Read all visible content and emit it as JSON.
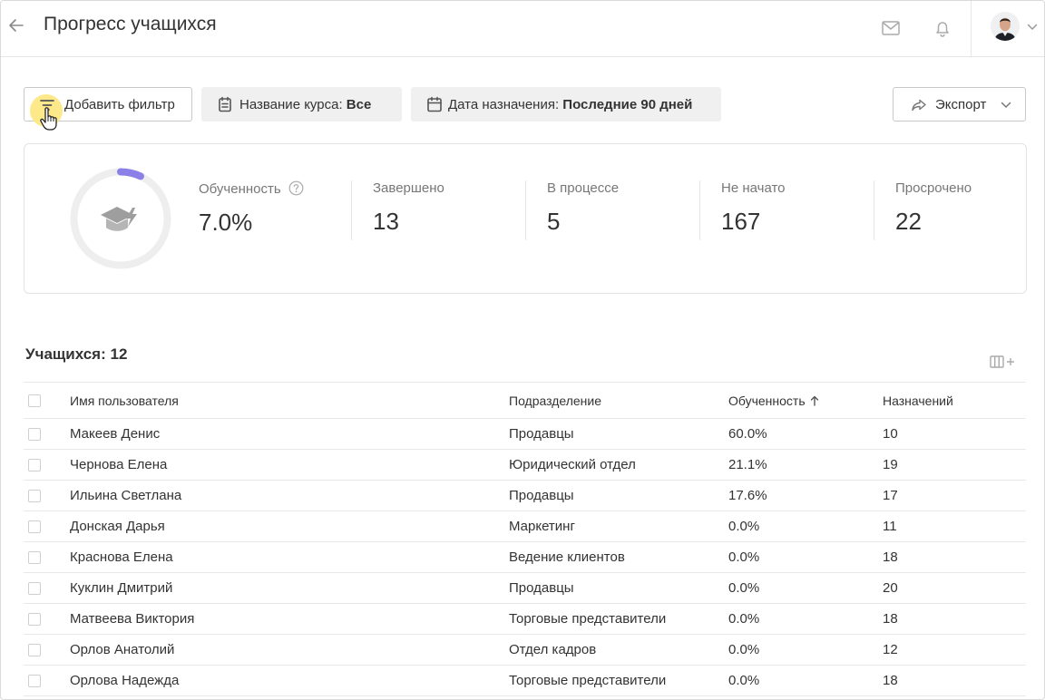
{
  "header": {
    "title": "Прогресс учащихся",
    "icons": {
      "back": "arrow-left-icon",
      "mail": "mail-icon",
      "bell": "bell-icon",
      "avatar_menu": "chevron-down-icon"
    }
  },
  "toolbar": {
    "add_filter_label": "Добавить фильтр",
    "course_filter_label": "Название курса:",
    "course_filter_value": "Все",
    "date_filter_label": "Дата назначения:",
    "date_filter_value": "Последние 90 дней",
    "export_label": "Экспорт"
  },
  "stats": {
    "progress_label": "Обученность",
    "progress_value": "7.0%",
    "progress_fraction": 0.07,
    "completed_label": "Завершено",
    "completed_value": "13",
    "in_progress_label": "В процессе",
    "in_progress_value": "5",
    "not_started_label": "Не начато",
    "not_started_value": "167",
    "overdue_label": "Просрочено",
    "overdue_value": "22",
    "accent_color": "#8b7fe8"
  },
  "table": {
    "count_label": "Учащихся: 12",
    "columns": {
      "name": "Имя пользователя",
      "dept": "Подразделение",
      "progress": "Обученность",
      "assignments": "Назначений"
    },
    "rows": [
      {
        "name": "Макеев Денис",
        "dept": "Продавцы",
        "progress": "60.0%",
        "assignments": "10"
      },
      {
        "name": "Чернова Елена",
        "dept": "Юридический отдел",
        "progress": "21.1%",
        "assignments": "19"
      },
      {
        "name": "Ильина Светлана",
        "dept": "Продавцы",
        "progress": "17.6%",
        "assignments": "17"
      },
      {
        "name": "Донская Дарья",
        "dept": "Маркетинг",
        "progress": "0.0%",
        "assignments": "11"
      },
      {
        "name": "Краснова Елена",
        "dept": "Ведение клиентов",
        "progress": "0.0%",
        "assignments": "18"
      },
      {
        "name": "Куклин Дмитрий",
        "dept": "Продавцы",
        "progress": "0.0%",
        "assignments": "20"
      },
      {
        "name": "Матвеева Виктория",
        "dept": "Торговые представители",
        "progress": "0.0%",
        "assignments": "18"
      },
      {
        "name": "Орлов Анатолий",
        "dept": "Отдел кадров",
        "progress": "0.0%",
        "assignments": "12"
      },
      {
        "name": "Орлова Надежда",
        "dept": "Торговые представители",
        "progress": "0.0%",
        "assignments": "18"
      }
    ]
  }
}
